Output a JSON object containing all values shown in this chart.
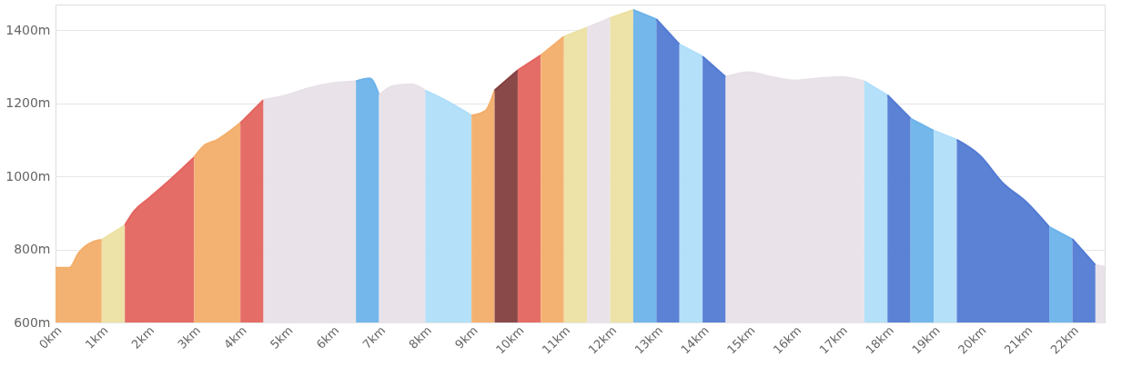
{
  "chart_data": {
    "type": "area",
    "xlim": [
      0,
      22.7
    ],
    "xticks": [
      {
        "value": 0,
        "label": "0km"
      },
      {
        "value": 1,
        "label": "1km"
      },
      {
        "value": 2,
        "label": "2km"
      },
      {
        "value": 3,
        "label": "3km"
      },
      {
        "value": 4,
        "label": "4km"
      },
      {
        "value": 5,
        "label": "5km"
      },
      {
        "value": 6,
        "label": "6km"
      },
      {
        "value": 7,
        "label": "7km"
      },
      {
        "value": 8,
        "label": "8km"
      },
      {
        "value": 9,
        "label": "9km"
      },
      {
        "value": 10,
        "label": "10km"
      },
      {
        "value": 11,
        "label": "11km"
      },
      {
        "value": 12,
        "label": "12km"
      },
      {
        "value": 13,
        "label": "13km"
      },
      {
        "value": 14,
        "label": "14km"
      },
      {
        "value": 15,
        "label": "15km"
      },
      {
        "value": 16,
        "label": "16km"
      },
      {
        "value": 17,
        "label": "17km"
      },
      {
        "value": 18,
        "label": "18km"
      },
      {
        "value": 19,
        "label": "19km"
      },
      {
        "value": 20,
        "label": "20km"
      },
      {
        "value": 21,
        "label": "21km"
      },
      {
        "value": 22,
        "label": "22km"
      }
    ],
    "ylim": [
      600,
      1470
    ],
    "yticks": [
      {
        "value": 600,
        "label": "600m"
      },
      {
        "value": 800,
        "label": "800m"
      },
      {
        "value": 1000,
        "label": "1000m"
      },
      {
        "value": 1200,
        "label": "1200m"
      },
      {
        "value": 1400,
        "label": "1400m"
      }
    ],
    "grid": "y",
    "series": [
      {
        "color": "#f3ae6a",
        "x": [
          0,
          0.3,
          0.5,
          0.8,
          1
        ],
        "values": [
          750,
          750,
          790,
          820,
          826
        ]
      },
      {
        "color": "#ece0a3",
        "x": [
          1,
          1.5
        ],
        "values": [
          826,
          866
        ]
      },
      {
        "color": "#e4655f",
        "x": [
          1.5,
          1.7,
          2,
          2.5,
          3
        ],
        "values": [
          866,
          905,
          938,
          993,
          1052
        ]
      },
      {
        "color": "#f3ae6a",
        "x": [
          3,
          3.2,
          3.5,
          4
        ],
        "values": [
          1052,
          1082,
          1100,
          1146
        ]
      },
      {
        "color": "#e4655f",
        "x": [
          4,
          4.5
        ],
        "values": [
          1146,
          1209
        ]
      },
      {
        "color": "#e8e1e8",
        "x": [
          4.5,
          5,
          5.5,
          6,
          6.5
        ],
        "values": [
          1209,
          1222,
          1242,
          1255,
          1260
        ]
      },
      {
        "color": "#6db3ea",
        "x": [
          6.5,
          6.8,
          7
        ],
        "values": [
          1260,
          1268,
          1222
        ]
      },
      {
        "color": "#e8e1e8",
        "x": [
          7,
          7.3,
          7.7,
          8
        ],
        "values": [
          1222,
          1247,
          1252,
          1235
        ]
      },
      {
        "color": "#b0defa",
        "x": [
          8,
          8.5,
          9
        ],
        "values": [
          1235,
          1204,
          1166
        ]
      },
      {
        "color": "#f3ae6a",
        "x": [
          9,
          9.3,
          9.5
        ],
        "values": [
          1166,
          1179,
          1235
        ]
      },
      {
        "color": "#843f3f",
        "x": [
          9.5,
          10
        ],
        "values": [
          1235,
          1290
        ]
      },
      {
        "color": "#e4655f",
        "x": [
          10,
          10.5
        ],
        "values": [
          1290,
          1331
        ]
      },
      {
        "color": "#f3ae6a",
        "x": [
          10.5,
          11
        ],
        "values": [
          1331,
          1382
        ]
      },
      {
        "color": "#ece0a3",
        "x": [
          11,
          11.5
        ],
        "values": [
          1382,
          1407
        ]
      },
      {
        "color": "#e8e1e8",
        "x": [
          11.5,
          12
        ],
        "values": [
          1407,
          1433
        ]
      },
      {
        "color": "#ece0a3",
        "x": [
          12,
          12.5
        ],
        "values": [
          1433,
          1455
        ]
      },
      {
        "color": "#6db3ea",
        "x": [
          12.5,
          13
        ],
        "values": [
          1455,
          1430
        ]
      },
      {
        "color": "#527bd3",
        "x": [
          13,
          13.5
        ],
        "values": [
          1430,
          1361
        ]
      },
      {
        "color": "#b0defa",
        "x": [
          13.5,
          14
        ],
        "values": [
          1361,
          1328
        ]
      },
      {
        "color": "#527bd3",
        "x": [
          14,
          14.5
        ],
        "values": [
          1328,
          1272
        ]
      },
      {
        "color": "#e8e1e8",
        "x": [
          14.5,
          15,
          15.5,
          16,
          16.5,
          17,
          17.5
        ],
        "values": [
          1272,
          1285,
          1272,
          1262,
          1268,
          1272,
          1260
        ]
      },
      {
        "color": "#b0defa",
        "x": [
          17.5,
          18
        ],
        "values": [
          1260,
          1222
        ]
      },
      {
        "color": "#527bd3",
        "x": [
          18,
          18.5
        ],
        "values": [
          1222,
          1158
        ]
      },
      {
        "color": "#6db3ea",
        "x": [
          18.5,
          19
        ],
        "values": [
          1158,
          1125
        ]
      },
      {
        "color": "#b0defa",
        "x": [
          19,
          19.5
        ],
        "values": [
          1125,
          1100
        ]
      },
      {
        "color": "#527bd3",
        "x": [
          19.5,
          20,
          20.5,
          21,
          21.5
        ],
        "values": [
          1100,
          1057,
          981,
          930,
          861
        ]
      },
      {
        "color": "#6db3ea",
        "x": [
          21.5,
          22
        ],
        "values": [
          861,
          828
        ]
      },
      {
        "color": "#527bd3",
        "x": [
          22,
          22.5
        ],
        "values": [
          828,
          757
        ]
      },
      {
        "color": "#e8e1e8",
        "x": [
          22.5,
          22.7
        ],
        "values": [
          757,
          752
        ]
      }
    ]
  }
}
